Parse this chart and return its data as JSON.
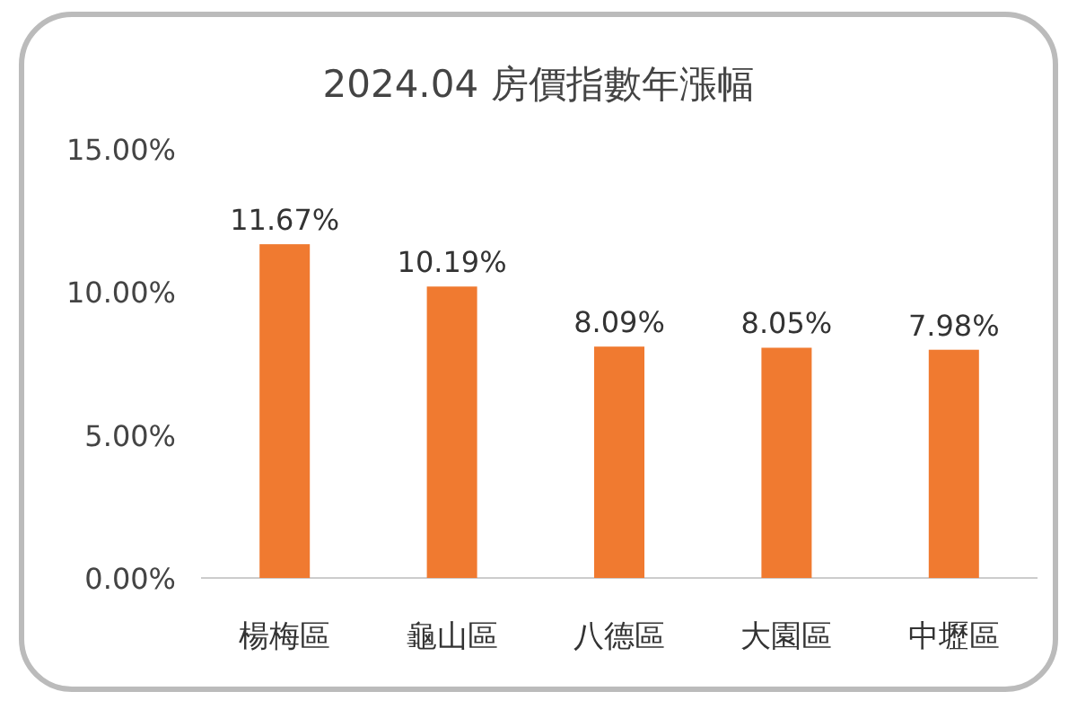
{
  "chart_data": {
    "type": "bar",
    "title": "2024.04 房價指數年漲幅",
    "categories": [
      "楊梅區",
      "龜山區",
      "八德區",
      "大園區",
      "中壢區"
    ],
    "values": [
      11.67,
      10.19,
      8.09,
      8.05,
      7.98
    ],
    "value_labels": [
      "11.67%",
      "10.19%",
      "8.09%",
      "8.05%",
      "7.98%"
    ],
    "color": "#f07a30",
    "ylim": [
      0,
      15
    ],
    "yticks": [
      {
        "value": 0,
        "label": "0.00%"
      },
      {
        "value": 5,
        "label": "5.00%"
      },
      {
        "value": 10,
        "label": "10.00%"
      },
      {
        "value": 15,
        "label": "15.00%"
      }
    ]
  }
}
